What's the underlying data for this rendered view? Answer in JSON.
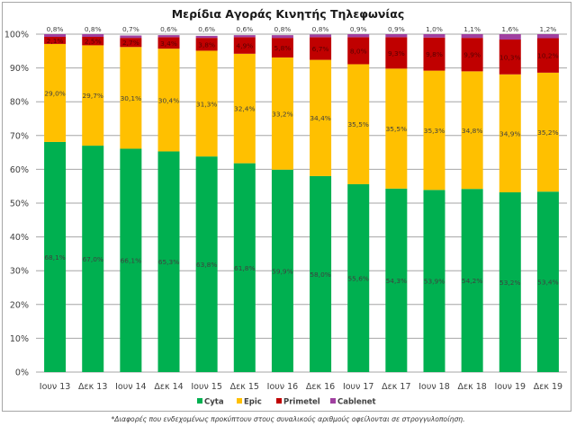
{
  "chart_data": {
    "type": "bar",
    "stacked": true,
    "title": "Μερίδια Αγοράς Κινητής Τηλεφωνίας",
    "xlabel": "",
    "ylabel": "",
    "ylim": [
      0,
      100
    ],
    "yticks": [
      "0%",
      "10%",
      "20%",
      "30%",
      "40%",
      "50%",
      "60%",
      "70%",
      "80%",
      "90%",
      "100%"
    ],
    "grid": true,
    "legend_position": "bottom",
    "categories": [
      "Ιουν 13",
      "Δεκ 13",
      "Ιουν 14",
      "Δεκ 14",
      "Ιουν 15",
      "Δεκ 15",
      "Ιουν 16",
      "Δεκ 16",
      "Ιουν 17",
      "Δεκ 17",
      "Ιουν 18",
      "Δεκ 18",
      "Ιουν 19",
      "Δεκ 19"
    ],
    "series": [
      {
        "name": "Cyta",
        "color": "#00b050",
        "values": [
          68.1,
          67.0,
          66.1,
          65.3,
          63.8,
          61.8,
          59.9,
          58.0,
          55.6,
          54.3,
          53.9,
          54.2,
          53.2,
          53.4
        ],
        "labels": [
          "68,1%",
          "67,0%",
          "66,1%",
          "65,3%",
          "63,8%",
          "61,8%",
          "59,9%",
          "58,0%",
          "55,6%",
          "54,3%",
          "53,9%",
          "54,2%",
          "53,2%",
          "53,4%"
        ]
      },
      {
        "name": "Epic",
        "color": "#ffc000",
        "values": [
          29.0,
          29.7,
          30.1,
          30.4,
          31.3,
          32.4,
          33.2,
          34.4,
          35.5,
          35.5,
          35.3,
          34.8,
          34.9,
          35.2
        ],
        "labels": [
          "29,0%",
          "29,7%",
          "30,1%",
          "30,4%",
          "31,3%",
          "32,4%",
          "33,2%",
          "34,4%",
          "35,5%",
          "35,5%",
          "35,3%",
          "34,8%",
          "34,9%",
          "35,2%"
        ]
      },
      {
        "name": "Primetel",
        "color": "#c00000",
        "values": [
          2.1,
          2.5,
          2.7,
          3.4,
          3.8,
          4.9,
          5.8,
          6.7,
          8.0,
          9.3,
          9.8,
          9.9,
          10.3,
          10.2
        ],
        "labels": [
          "2,1%",
          "2,5%",
          "2,7%",
          "3,4%",
          "3,8%",
          "4,9%",
          "5,8%",
          "6,7%",
          "8,0%",
          "9,3%",
          "9,8%",
          "9,9%",
          "10,3%",
          "10,2%"
        ]
      },
      {
        "name": "Cablenet",
        "color": "#a040a0",
        "values": [
          0.8,
          0.8,
          0.7,
          0.6,
          0.6,
          0.6,
          0.8,
          0.8,
          0.9,
          0.9,
          1.0,
          1.1,
          1.6,
          1.2
        ],
        "labels": [
          "0,8%",
          "0,8%",
          "0,7%",
          "0,6%",
          "0,6%",
          "0,6%",
          "0,8%",
          "0,8%",
          "0,9%",
          "0,9%",
          "1,0%",
          "1,1%",
          "1,6%",
          "1,2%"
        ]
      }
    ]
  },
  "footnote": "*Διαφορές που ενδεχομένως προκύπτουν στους συναλικούς αριθμούς οφείλονται σε στρογγυλοποίηση."
}
